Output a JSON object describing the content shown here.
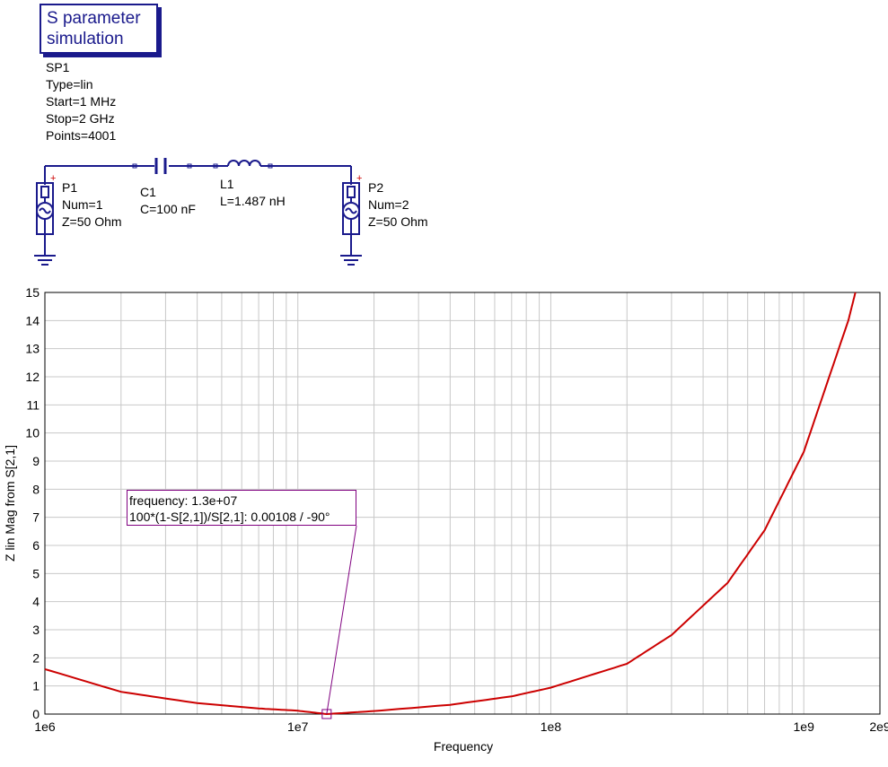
{
  "simulation": {
    "box_line1": "S parameter",
    "box_line2": "simulation",
    "name": "SP1",
    "type": "Type=lin",
    "start": "Start=1 MHz",
    "stop": "Stop=2 GHz",
    "points": "Points=4001"
  },
  "components": {
    "p1": {
      "name": "P1",
      "num": "Num=1",
      "z": "Z=50 Ohm"
    },
    "c1": {
      "name": "C1",
      "value": "C=100 nF"
    },
    "l1": {
      "name": "L1",
      "value": "L=1.487 nH"
    },
    "p2": {
      "name": "P2",
      "num": "Num=2",
      "z": "Z=50 Ohm"
    }
  },
  "chart_data": {
    "type": "line",
    "xscale": "log",
    "xlim": [
      1000000,
      2000000000
    ],
    "ylim": [
      0,
      15
    ],
    "xlabel": "Frequency",
    "ylabel": "Z lin Mag from S[2,1]",
    "x_ticks": [
      "1e6",
      "1e7",
      "1e8",
      "1e9",
      "2e9"
    ],
    "y_ticks": [
      "0",
      "1",
      "2",
      "3",
      "4",
      "5",
      "6",
      "7",
      "8",
      "9",
      "10",
      "11",
      "12",
      "13",
      "14",
      "15"
    ],
    "grid": true,
    "series": [
      {
        "color": "#cc0000",
        "x": [
          1000000,
          2000000,
          4000000,
          7000000,
          10000000,
          13000000,
          20000000,
          40000000,
          70000000,
          100000000,
          200000000,
          300000000,
          500000000,
          700000000,
          1000000000,
          1500000000,
          1600000000
        ],
        "y": [
          1.6,
          0.79,
          0.39,
          0.2,
          0.12,
          0.001,
          0.107,
          0.33,
          0.63,
          0.94,
          1.79,
          2.81,
          4.67,
          6.54,
          9.33,
          14.0,
          15.0
        ]
      }
    ],
    "marker": {
      "x": 13000000,
      "y": 0.00108,
      "line1": "frequency: 1.3e+07",
      "line2": "100*(1-S[2,1])/S[2,1]: 0.00108 / -90°",
      "color": "#800080"
    }
  }
}
